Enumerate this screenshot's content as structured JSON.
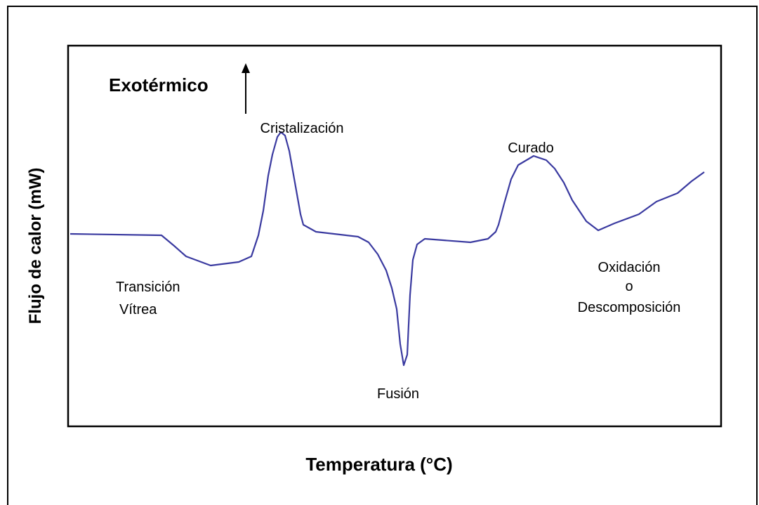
{
  "indicator": {
    "label": "Exotérmico"
  },
  "annotations": {
    "crystallization": "Cristalización",
    "curing": "Curado",
    "glass_transition": [
      "Transición",
      "Vítrea"
    ],
    "melting": "Fusión",
    "oxidation": [
      "Oxidación",
      "o",
      "Descomposición"
    ]
  },
  "axes": {
    "y_label": "Flujo de calor (mW)",
    "x_label": "Temperatura (°C)"
  }
}
